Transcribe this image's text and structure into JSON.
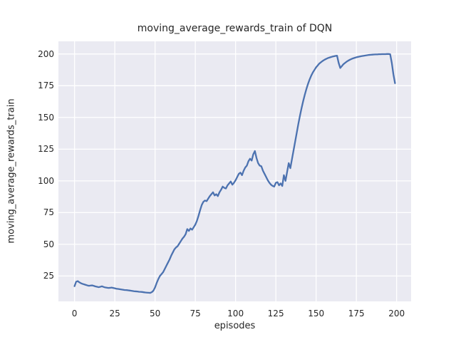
{
  "chart_data": {
    "type": "line",
    "title": "moving_average_rewards_train of DQN",
    "xlabel": "episodes",
    "ylabel": "moving_average_rewards_train",
    "x_ticks": [
      0,
      25,
      50,
      75,
      100,
      125,
      150,
      175,
      200
    ],
    "y_ticks": [
      25,
      50,
      75,
      100,
      125,
      150,
      175,
      200
    ],
    "xlim": [
      -10,
      209
    ],
    "ylim": [
      5,
      210
    ],
    "grid": true,
    "legend": "none",
    "style": {
      "figure_bg": "#ffffff",
      "axes_bg": "#eaeaf2",
      "grid_color": "#ffffff",
      "line_color": "#4c72b0",
      "text_color": "#262626",
      "line_width": 2.3,
      "grid_width": 1.3
    },
    "series": [
      {
        "name": "moving_average_rewards_train",
        "x0": 0,
        "dx": 1,
        "y": [
          17.0,
          20.5,
          21.0,
          20.0,
          19.3,
          18.8,
          18.4,
          18.0,
          17.6,
          17.3,
          17.5,
          17.6,
          17.2,
          16.8,
          16.5,
          16.2,
          16.5,
          16.9,
          16.4,
          16.0,
          15.8,
          15.6,
          15.7,
          15.9,
          15.6,
          15.3,
          15.0,
          14.8,
          14.6,
          14.4,
          14.2,
          14.0,
          13.9,
          13.8,
          13.6,
          13.4,
          13.2,
          13.0,
          12.9,
          12.8,
          12.6,
          12.5,
          12.4,
          12.2,
          12.0,
          11.9,
          11.8,
          11.7,
          12.3,
          13.5,
          16.0,
          19.5,
          22.5,
          25.0,
          26.5,
          28.0,
          30.5,
          33.0,
          35.5,
          38.0,
          41.0,
          43.5,
          46.0,
          47.5,
          48.5,
          50.5,
          52.5,
          54.5,
          56.0,
          58.0,
          62.0,
          60.5,
          62.5,
          61.5,
          63.5,
          65.5,
          68.5,
          72.5,
          77.0,
          81.0,
          83.5,
          84.5,
          84.0,
          86.0,
          88.0,
          89.5,
          91.0,
          88.5,
          89.5,
          88.0,
          91.0,
          93.0,
          95.5,
          94.5,
          94.0,
          96.5,
          98.0,
          99.5,
          97.0,
          98.5,
          100.5,
          103.0,
          105.5,
          106.5,
          104.5,
          108.0,
          110.5,
          112.0,
          115.5,
          117.5,
          116.0,
          121.0,
          123.5,
          118.0,
          114.0,
          112.0,
          111.5,
          108.0,
          105.5,
          103.0,
          100.5,
          98.5,
          97.0,
          96.0,
          95.5,
          98.5,
          99.0,
          96.5,
          98.0,
          96.0,
          104.5,
          100.0,
          107.0,
          114.0,
          110.0,
          117.0,
          124.0,
          131.0,
          138.0,
          145.0,
          151.5,
          157.5,
          163.0,
          168.0,
          172.5,
          176.5,
          180.0,
          183.0,
          185.5,
          187.5,
          189.5,
          191.0,
          192.5,
          193.5,
          194.5,
          195.3,
          196.0,
          196.6,
          197.1,
          197.5,
          197.9,
          198.2,
          198.5,
          198.7,
          193.0,
          189.0,
          190.5,
          192.0,
          193.0,
          194.0,
          194.8,
          195.5,
          196.1,
          196.6,
          197.0,
          197.4,
          197.7,
          198.0,
          198.3,
          198.5,
          198.7,
          198.9,
          199.1,
          199.3,
          199.4,
          199.5,
          199.6,
          199.7,
          199.7,
          199.8,
          199.8,
          199.9,
          199.9,
          199.9,
          200.0,
          200.0,
          199.8,
          193.0,
          184.0,
          177.0
        ]
      }
    ]
  }
}
